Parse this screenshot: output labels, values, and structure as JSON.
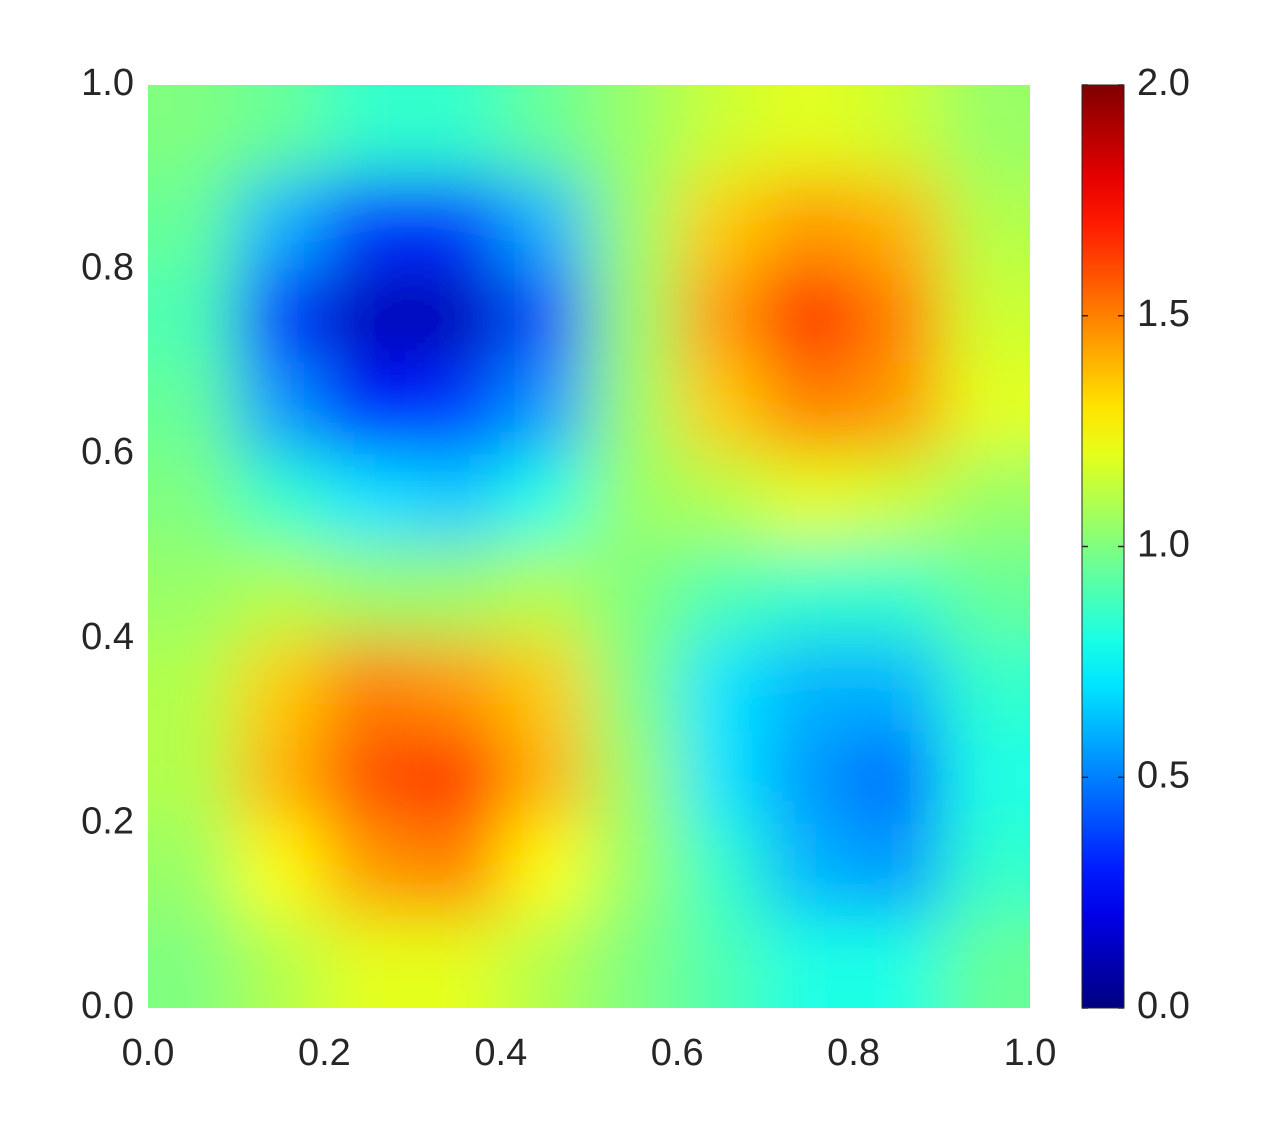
{
  "chart_data": {
    "type": "heatmap",
    "colormap": "jet",
    "x": [
      0.05,
      0.15,
      0.25,
      0.35,
      0.45,
      0.55,
      0.65,
      0.75,
      0.85,
      0.95
    ],
    "y": [
      0.95,
      0.85,
      0.75,
      0.65,
      0.55,
      0.45,
      0.35,
      0.25,
      0.15,
      0.05
    ],
    "z": [
      [
        1.0,
        0.95,
        0.85,
        0.85,
        0.95,
        1.05,
        1.15,
        1.2,
        1.15,
        1.05
      ],
      [
        0.95,
        0.6,
        0.35,
        0.35,
        0.6,
        1.05,
        1.35,
        1.45,
        1.4,
        1.1
      ],
      [
        0.9,
        0.35,
        0.1,
        0.1,
        0.4,
        1.05,
        1.45,
        1.7,
        1.5,
        1.15
      ],
      [
        0.95,
        0.55,
        0.25,
        0.35,
        0.55,
        1.05,
        1.35,
        1.5,
        1.45,
        1.2
      ],
      [
        1.0,
        0.85,
        0.7,
        0.65,
        0.8,
        1.05,
        1.1,
        1.2,
        1.15,
        1.05
      ],
      [
        1.05,
        1.1,
        1.05,
        1.05,
        1.1,
        1.0,
        0.9,
        0.85,
        0.85,
        0.95
      ],
      [
        1.1,
        1.35,
        1.5,
        1.45,
        1.35,
        1.0,
        0.7,
        0.6,
        0.6,
        0.85
      ],
      [
        1.1,
        1.4,
        1.6,
        1.65,
        1.4,
        1.05,
        0.7,
        0.55,
        0.45,
        0.8
      ],
      [
        1.05,
        1.25,
        1.45,
        1.5,
        1.25,
        1.05,
        0.85,
        0.6,
        0.55,
        0.85
      ],
      [
        1.0,
        1.1,
        1.2,
        1.2,
        1.1,
        1.0,
        0.9,
        0.8,
        0.8,
        0.95
      ]
    ],
    "xlim": [
      0,
      1
    ],
    "ylim": [
      0,
      1
    ],
    "xticks": [
      {
        "value": 0,
        "label": "0.0"
      },
      0.2,
      0.4,
      0.6,
      0.8,
      {
        "value": 1,
        "label": "1.0"
      }
    ],
    "yticks": [
      {
        "value": 0,
        "label": "0.0"
      },
      0.2,
      0.4,
      0.6,
      0.8,
      {
        "value": 1,
        "label": "1.0"
      }
    ],
    "zlim": [
      0,
      2
    ],
    "colorbar_ticks": [
      {
        "value": 0,
        "label": "0.0"
      },
      0.5,
      {
        "value": 1,
        "label": "1.0"
      },
      1.5,
      {
        "value": 2,
        "label": "2.0"
      }
    ]
  }
}
